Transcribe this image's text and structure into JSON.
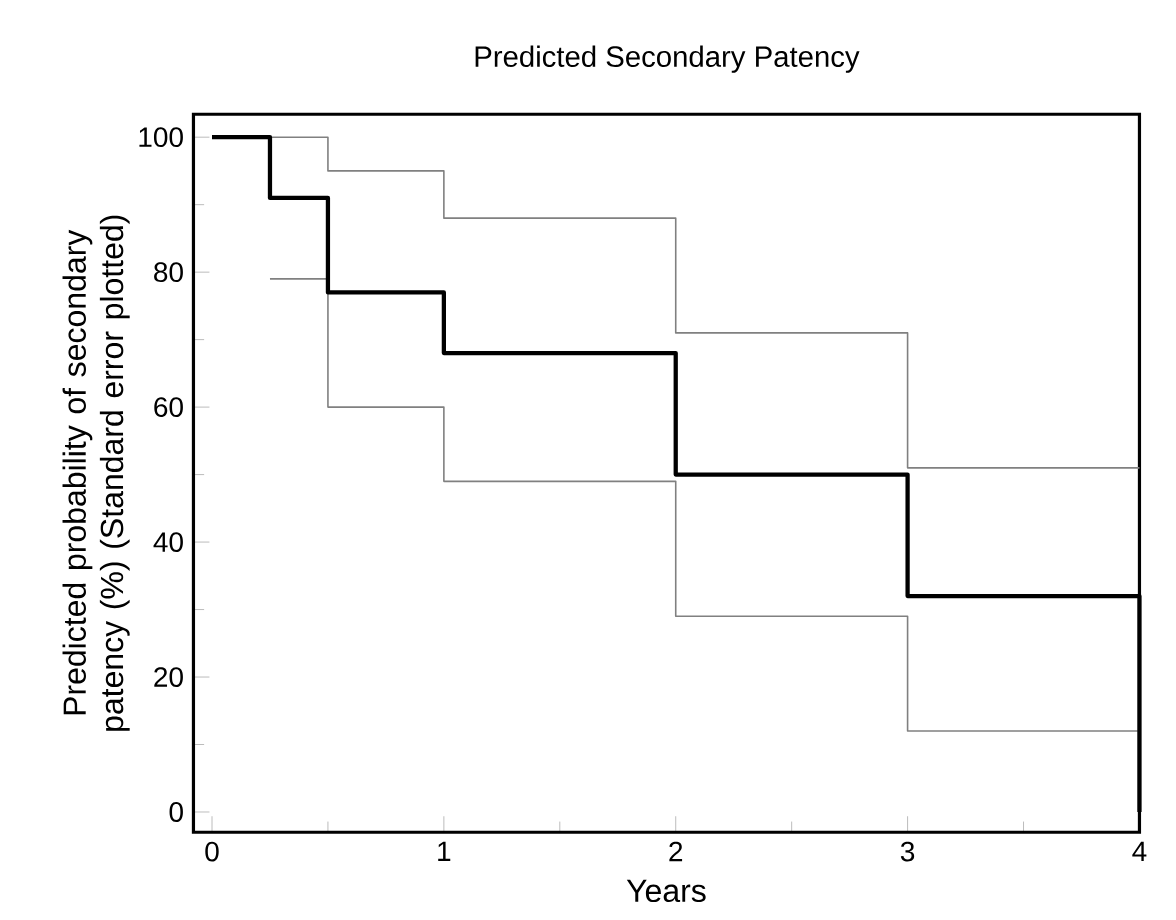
{
  "chart_data": {
    "type": "step",
    "title": "Predicted Secondary Patency",
    "xlabel": "Years",
    "ylabel": "Predicted probability of secondary patency (%) (Standard error plotted)",
    "series": [
      {
        "color": "#808080",
        "x": [
          0,
          0.5,
          1,
          2,
          3,
          4
        ],
        "values": [
          100,
          95,
          88,
          71,
          51,
          51
        ]
      },
      {
        "color": "#808080",
        "x": [
          0.25,
          0.5,
          1,
          2,
          3,
          4
        ],
        "values": [
          79,
          60,
          49,
          29,
          12,
          12
        ]
      },
      {
        "color": "#000000",
        "x": [
          0,
          0.25,
          0.5,
          1,
          2,
          3,
          4
        ],
        "values": [
          100,
          91,
          77,
          68,
          50,
          32,
          0
        ]
      }
    ],
    "xlim": [
      -0.08,
      4
    ],
    "ylim": [
      -3,
      103.4
    ],
    "xticks": [
      0,
      1,
      2,
      3,
      4
    ],
    "yticks": [
      0,
      20,
      40,
      60,
      80,
      100
    ]
  }
}
